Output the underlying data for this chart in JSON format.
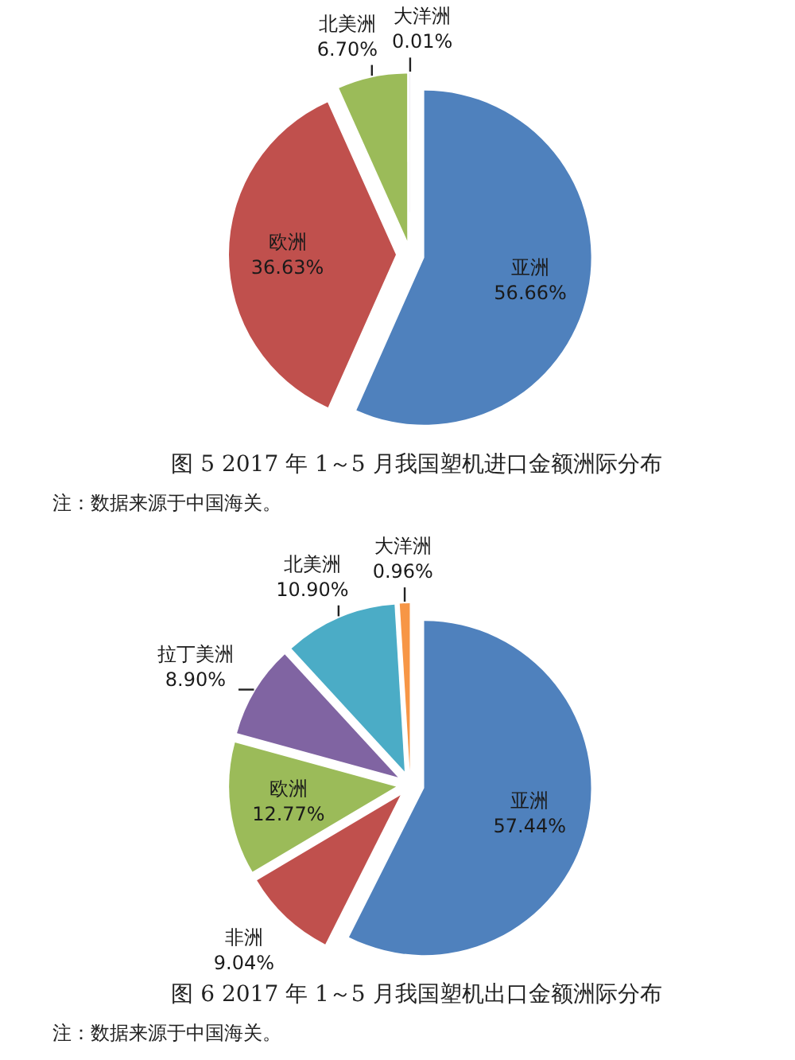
{
  "chart_data": [
    {
      "type": "pie",
      "title": "图 5 2017 年 1～5 月我国塑机进口金额洲际分布",
      "categories": [
        "亚洲",
        "欧洲",
        "北美洲",
        "大洋洲"
      ],
      "values": [
        56.66,
        36.63,
        6.7,
        0.01
      ],
      "value_labels": [
        "56.66%",
        "36.63%",
        "6.70%",
        "0.01%"
      ],
      "colors": [
        "#4f81bd",
        "#c0504d",
        "#9bbb59",
        "#8064a2"
      ],
      "annotations": [
        "注：数据来源于中国海关。"
      ]
    },
    {
      "type": "pie",
      "title": "图 6 2017 年 1～5 月我国塑机出口金额洲际分布",
      "categories": [
        "亚洲",
        "非洲",
        "欧洲",
        "拉丁美洲",
        "北美洲",
        "大洋洲"
      ],
      "values": [
        57.44,
        9.04,
        12.77,
        8.9,
        10.9,
        0.96
      ],
      "value_labels": [
        "57.44%",
        "9.04%",
        "12.77%",
        "8.90%",
        "10.90%",
        "0.96%"
      ],
      "colors": [
        "#4f81bd",
        "#c0504d",
        "#9bbb59",
        "#8064a2",
        "#4bacc6",
        "#f79646"
      ],
      "annotations": [
        "注：数据来源于中国海关。"
      ]
    }
  ]
}
